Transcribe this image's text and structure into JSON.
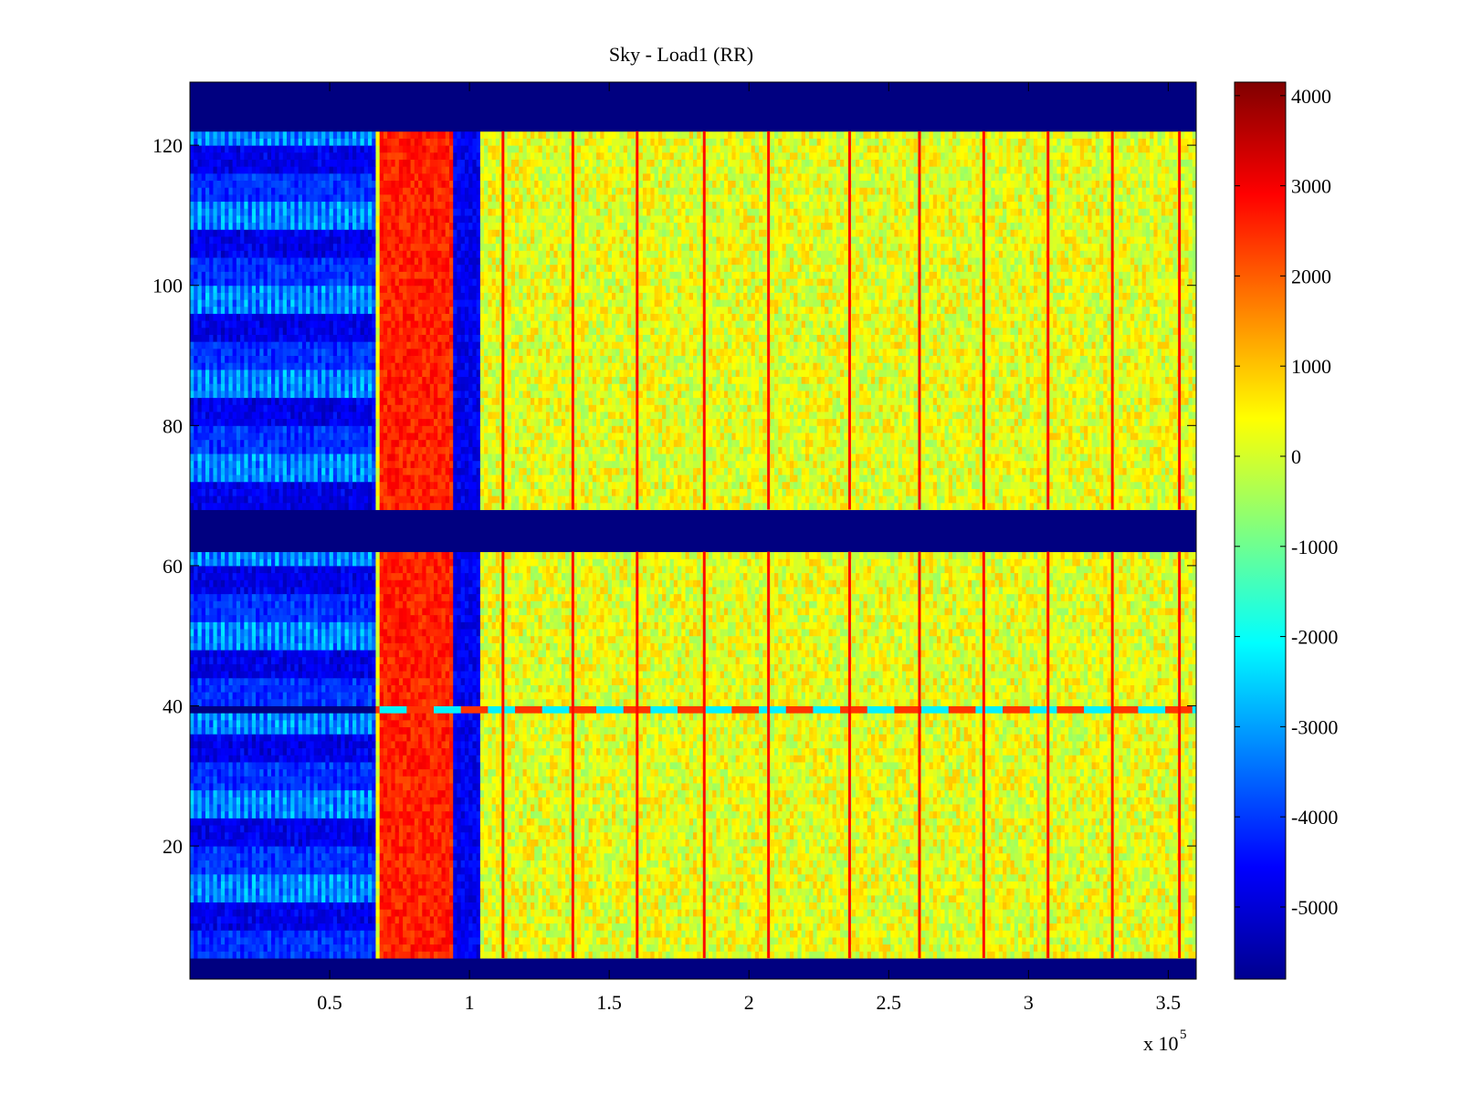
{
  "chart_data": {
    "type": "heatmap",
    "title": "Sky - Load1 (RR)",
    "xlabel": "",
    "ylabel": "",
    "x_multiplier_label": "x 10",
    "x_multiplier_exponent": "5",
    "xlim": [
      0,
      3.6
    ],
    "ylim": [
      1,
      129
    ],
    "x_ticks": [
      0.5,
      1,
      1.5,
      2,
      2.5,
      3,
      3.5
    ],
    "x_tick_labels": [
      "0.5",
      "1",
      "1.5",
      "2",
      "2.5",
      "3",
      "3.5"
    ],
    "y_ticks": [
      20,
      40,
      60,
      80,
      100,
      120
    ],
    "y_tick_labels": [
      "20",
      "40",
      "60",
      "80",
      "100",
      "120"
    ],
    "colorbar": {
      "colormap": "jet",
      "clim": [
        -5800,
        4150
      ],
      "ticks": [
        4000,
        3000,
        2000,
        1000,
        0,
        -1000,
        -2000,
        -3000,
        -4000,
        -5000
      ],
      "tick_labels": [
        "4000",
        "3000",
        "2000",
        "1000",
        "0",
        "-1000",
        "-2000",
        "-3000",
        "-4000",
        "-5000"
      ]
    },
    "masked_channel_ranges": [
      [
        1,
        4
      ],
      [
        122,
        129
      ],
      [
        62,
        68
      ]
    ],
    "band_regions": [
      {
        "name": "low-x blue striped region",
        "x_range": [
          0,
          0.66
        ],
        "value_approx": -4500
      },
      {
        "name": "red band",
        "x_range": [
          0.68,
          0.94
        ],
        "value_approx": 2600
      },
      {
        "name": "blue dip band",
        "x_range": [
          0.94,
          1.04
        ],
        "value_approx": -4700
      },
      {
        "name": "yellow plateau",
        "x_range": [
          1.04,
          3.6
        ],
        "value_approx": 200
      }
    ],
    "spike_lines_x": [
      1.12,
      1.37,
      1.6,
      1.84,
      2.07,
      2.36,
      2.61,
      2.84,
      3.07,
      3.3,
      3.54
    ],
    "spike_value_approx": 2800,
    "anomalous_row": {
      "y": 39,
      "value_pattern": "mixed red / cyan"
    }
  }
}
